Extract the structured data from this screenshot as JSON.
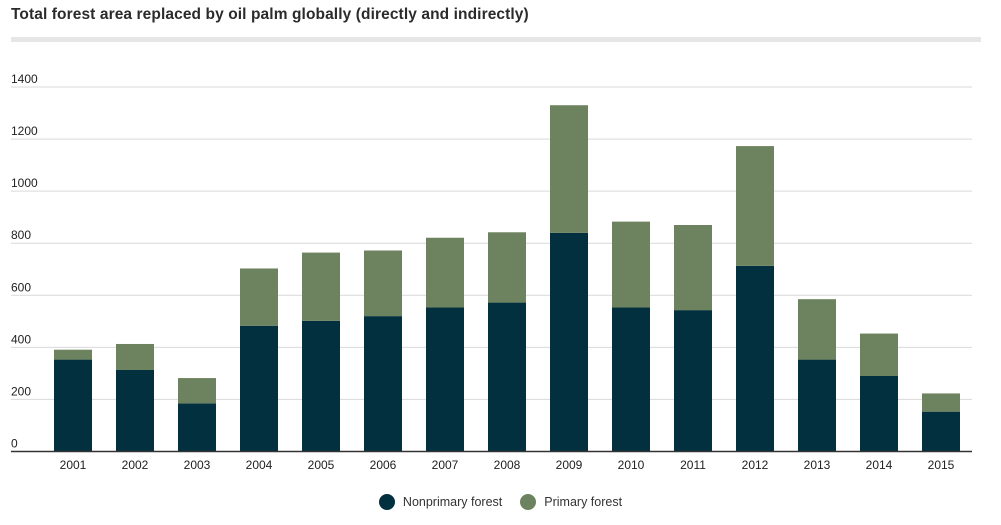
{
  "chart_data": {
    "type": "bar",
    "stacked": true,
    "title": "Total forest area replaced by oil palm globally (directly and indirectly)",
    "categories": [
      "2001",
      "2002",
      "2003",
      "2004",
      "2005",
      "2006",
      "2007",
      "2008",
      "2009",
      "2010",
      "2011",
      "2012",
      "2013",
      "2014",
      "2015"
    ],
    "series": [
      {
        "name": "Nonprimary forest",
        "color": "#03303f",
        "values": [
          353,
          313,
          185,
          483,
          502,
          520,
          553,
          572,
          840,
          553,
          543,
          713,
          353,
          290,
          153
        ]
      },
      {
        "name": "Primary forest",
        "color": "#6d825e",
        "values": [
          38,
          100,
          97,
          220,
          262,
          252,
          268,
          270,
          490,
          330,
          327,
          460,
          232,
          163,
          70
        ]
      }
    ],
    "yticks": [
      "0",
      "200",
      "400",
      "600",
      "800",
      "1000",
      "1200",
      "1400"
    ],
    "ylim": [
      0,
      1400
    ],
    "grid": true,
    "legend_position": "bottom-center"
  }
}
